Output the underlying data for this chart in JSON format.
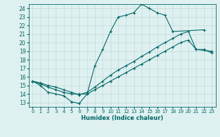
{
  "xlabel": "Humidex (Indice chaleur)",
  "bg_color": "#dff0f0",
  "grid_color": "#c2dada",
  "line_color": "#006666",
  "xlim": [
    -0.5,
    23.5
  ],
  "ylim": [
    12.5,
    24.5
  ],
  "yticks": [
    13,
    14,
    15,
    16,
    17,
    18,
    19,
    20,
    21,
    22,
    23,
    24
  ],
  "xticks": [
    0,
    1,
    2,
    3,
    4,
    5,
    6,
    7,
    8,
    9,
    10,
    11,
    12,
    13,
    14,
    15,
    16,
    17,
    18,
    19,
    20,
    21,
    22,
    23
  ],
  "curve1_x": [
    0,
    1,
    2,
    3,
    4,
    5,
    6,
    7,
    8,
    9,
    10,
    11,
    12,
    13,
    14,
    15,
    16,
    17,
    18,
    22
  ],
  "curve1_y": [
    15.5,
    15.0,
    14.2,
    14.0,
    13.8,
    13.1,
    12.9,
    14.0,
    17.3,
    19.2,
    21.3,
    23.0,
    23.2,
    23.5,
    24.5,
    24.0,
    23.5,
    23.2,
    21.3,
    21.5
  ],
  "curve2_x": [
    0,
    1,
    2,
    3,
    4,
    5,
    6,
    7,
    8,
    9,
    10,
    11,
    12,
    13,
    14,
    15,
    16,
    17,
    18,
    19,
    20,
    21,
    22,
    23
  ],
  "curve2_y": [
    15.5,
    15.2,
    14.8,
    14.5,
    14.2,
    14.0,
    14.0,
    14.0,
    14.5,
    15.0,
    15.5,
    16.0,
    16.5,
    17.0,
    17.5,
    18.0,
    18.5,
    19.0,
    19.5,
    20.0,
    20.3,
    19.2,
    19.2,
    18.8
  ],
  "curve3_x": [
    0,
    1,
    2,
    3,
    4,
    5,
    6,
    7,
    8,
    9,
    10,
    11,
    12,
    13,
    14,
    15,
    16,
    17,
    18,
    19,
    20,
    21,
    22,
    23
  ],
  "curve3_y": [
    15.5,
    15.3,
    15.0,
    14.8,
    14.5,
    14.2,
    13.9,
    14.2,
    14.8,
    15.5,
    16.2,
    16.8,
    17.3,
    17.8,
    18.4,
    18.9,
    19.5,
    20.0,
    20.5,
    21.0,
    21.3,
    19.2,
    19.1,
    19.0
  ]
}
